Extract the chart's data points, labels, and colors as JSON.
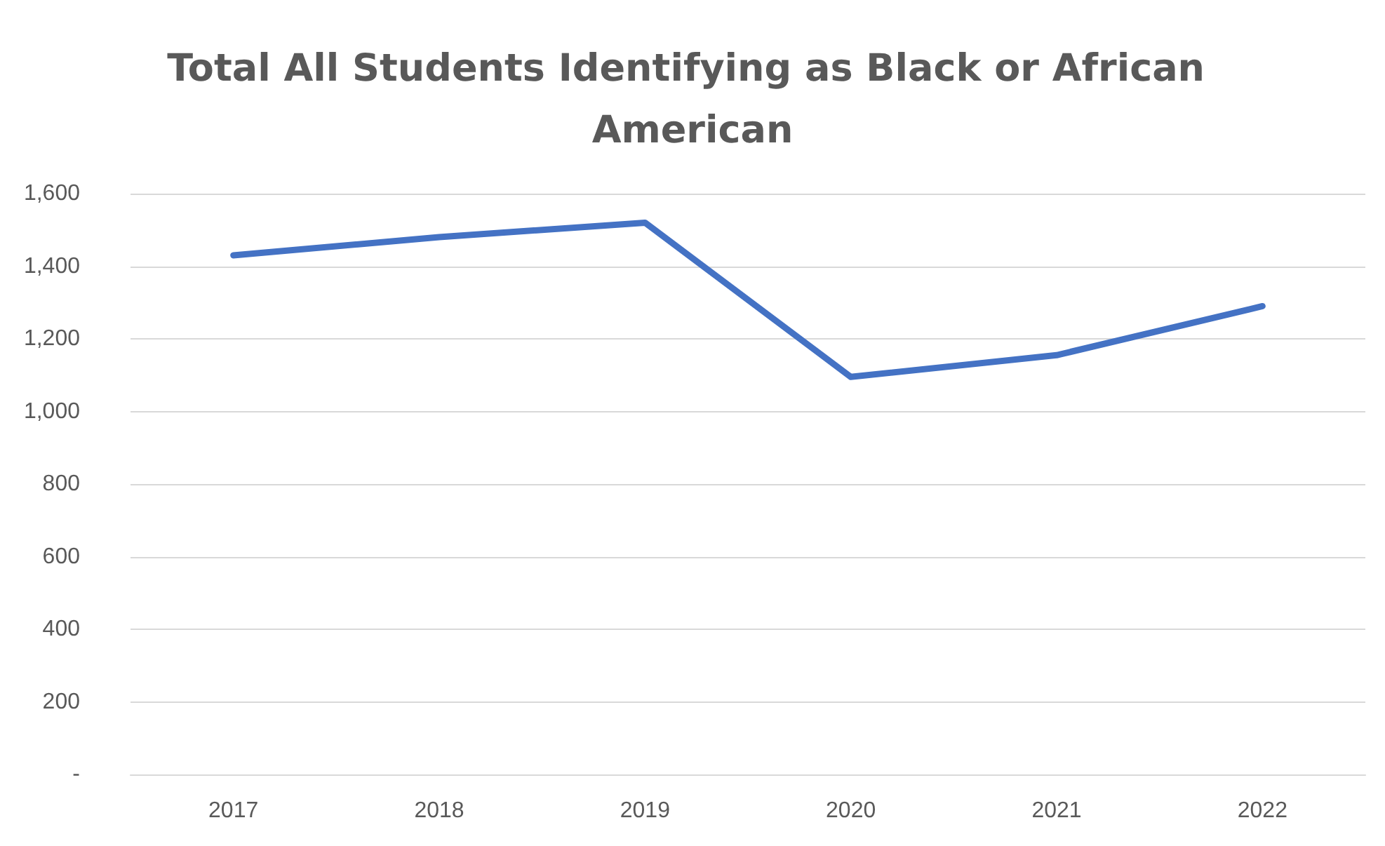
{
  "chart_data": {
    "type": "line",
    "title": "Total All Students Identifying as Black or African American",
    "categories": [
      "2017",
      "2018",
      "2019",
      "2020",
      "2021",
      "2022"
    ],
    "series": [
      {
        "color": "#4472c4",
        "values": [
          1430,
          1480,
          1520,
          1095,
          1155,
          1290
        ]
      }
    ],
    "ylim": [
      0,
      1600
    ],
    "yticks": [
      {
        "value": 0,
        "label": "-"
      },
      {
        "value": 200,
        "label": "200"
      },
      {
        "value": 400,
        "label": "400"
      },
      {
        "value": 600,
        "label": "600"
      },
      {
        "value": 800,
        "label": "800"
      },
      {
        "value": 1000,
        "label": "1,000"
      },
      {
        "value": 1200,
        "label": "1,200"
      },
      {
        "value": 1400,
        "label": "1,400"
      },
      {
        "value": 1600,
        "label": "1,600"
      }
    ],
    "grid": "y",
    "marker": "none",
    "line_style": "solid"
  }
}
